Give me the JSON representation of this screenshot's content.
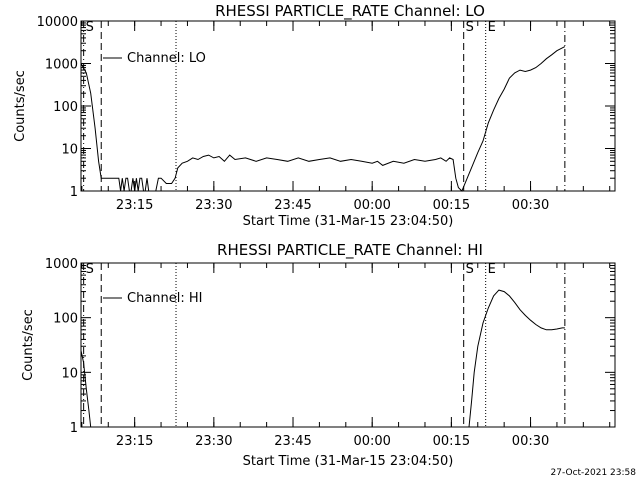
{
  "footer_date": "27-Oct-2021 23:58",
  "colors": {
    "background": "#ffffff",
    "foreground": "#000000"
  },
  "chart_data": [
    {
      "type": "line",
      "title": "RHESSI PARTICLE_RATE Channel: LO",
      "xlabel": "Start Time (31-Mar-15 23:04:50)",
      "ylabel": "Counts/sec",
      "yscale": "log",
      "ylim": [
        1,
        10000
      ],
      "xlim": [
        "23:04:50",
        "00:46:00"
      ],
      "x_ticks": [
        "23:15",
        "23:30",
        "23:45",
        "00:00",
        "00:15",
        "00:30"
      ],
      "y_ticks": [
        "1",
        "10",
        "100",
        "1000",
        "10000"
      ],
      "legend": {
        "label": "Channel: LO",
        "placement": "top-left"
      },
      "markers": [
        {
          "label": "S",
          "time": "23:05:20",
          "style": "dash-dot"
        },
        {
          "label": "",
          "time": "23:08:40",
          "style": "dashed"
        },
        {
          "label": "",
          "time": "23:22:50",
          "style": "dotted"
        },
        {
          "label": "S",
          "time": "00:17:20",
          "style": "dashed"
        },
        {
          "label": "E",
          "time": "00:21:30",
          "style": "dotted"
        },
        {
          "label": "",
          "time": "00:36:30",
          "style": "dash-dot"
        }
      ],
      "series": [
        {
          "x": [
            "23:04:50",
            "23:05:50",
            "23:06:40",
            "23:07:30",
            "23:08:10",
            "23:08:40",
            "23:09:20",
            "23:12:00",
            "23:12:20",
            "23:12:40",
            "23:13:00",
            "23:13:20",
            "23:13:40",
            "23:14:00",
            "23:14:20",
            "23:14:40",
            "23:15:00",
            "23:15:20",
            "23:15:40",
            "23:16:00",
            "23:16:20",
            "23:16:40",
            "23:17:00",
            "23:17:20",
            "23:17:40",
            "23:18:00",
            "23:18:20",
            "23:19:00",
            "23:19:30",
            "23:20:00",
            "23:21:00",
            "23:22:00",
            "23:22:40",
            "23:23:10",
            "23:24:00",
            "23:25:00",
            "23:26:00",
            "23:27:00",
            "23:28:00",
            "23:29:00",
            "23:30:00",
            "23:31:00",
            "23:32:00",
            "23:33:00",
            "23:34:00",
            "23:36:00",
            "23:38:00",
            "23:40:00",
            "23:42:00",
            "23:44:00",
            "23:46:00",
            "23:48:00",
            "23:50:00",
            "23:52:00",
            "23:54:00",
            "23:56:00",
            "23:58:00",
            "00:00:00",
            "00:01:00",
            "00:02:00",
            "00:04:00",
            "00:06:00",
            "00:08:00",
            "00:10:00",
            "00:12:00",
            "00:13:00",
            "00:14:00",
            "00:14:40",
            "00:15:20",
            "00:15:50",
            "00:16:20",
            "00:17:00",
            "00:18:00",
            "00:19:00",
            "00:20:00",
            "00:21:00",
            "00:22:00",
            "00:23:00",
            "00:24:00",
            "00:25:00",
            "00:26:00",
            "00:27:00",
            "00:28:00",
            "00:29:00",
            "00:30:00",
            "00:31:00",
            "00:32:00",
            "00:33:00",
            "00:34:00",
            "00:35:00",
            "00:36:30"
          ],
          "y": [
            1000,
            600,
            200,
            30,
            5,
            2,
            2,
            2,
            1,
            2,
            1,
            2,
            2,
            1,
            1,
            2,
            1,
            2,
            1,
            2,
            2,
            1,
            1,
            2,
            1,
            1,
            1,
            1,
            2,
            2,
            1.5,
            1.5,
            2,
            3.5,
            4.5,
            5,
            6,
            5.5,
            6.5,
            7,
            6,
            6.5,
            5,
            7,
            5.5,
            6,
            5,
            6,
            5.5,
            5,
            6,
            5,
            5.5,
            6,
            5,
            5.5,
            5,
            4.5,
            5,
            4,
            5,
            4.5,
            5.5,
            5,
            5.5,
            6,
            5,
            6,
            5.5,
            2,
            1.2,
            1,
            2,
            4,
            8,
            15,
            40,
            80,
            150,
            250,
            450,
            600,
            700,
            650,
            700,
            800,
            1000,
            1300,
            1600,
            2000,
            2500
          ]
        }
      ]
    },
    {
      "type": "line",
      "title": "RHESSI PARTICLE_RATE Channel: HI",
      "xlabel": "Start Time (31-Mar-15 23:04:50)",
      "ylabel": "Counts/sec",
      "yscale": "log",
      "ylim": [
        1,
        1000
      ],
      "xlim": [
        "23:04:50",
        "00:46:00"
      ],
      "x_ticks": [
        "23:15",
        "23:30",
        "23:45",
        "00:00",
        "00:15",
        "00:30"
      ],
      "y_ticks": [
        "1",
        "10",
        "100",
        "1000"
      ],
      "legend": {
        "label": "Channel: HI",
        "placement": "top-left"
      },
      "markers": [
        {
          "label": "S",
          "time": "23:05:20",
          "style": "dash-dot"
        },
        {
          "label": "",
          "time": "23:08:40",
          "style": "dashed"
        },
        {
          "label": "",
          "time": "23:22:50",
          "style": "dotted"
        },
        {
          "label": "S",
          "time": "00:17:20",
          "style": "dashed"
        },
        {
          "label": "E",
          "time": "00:21:30",
          "style": "dotted"
        },
        {
          "label": "",
          "time": "00:36:30",
          "style": "dash-dot"
        }
      ],
      "series": [
        {
          "x": [
            "23:04:50",
            "23:05:20",
            "23:05:50",
            "23:06:20",
            "23:06:40",
            "00:18:20",
            "00:18:50",
            "00:19:20",
            "00:20:00",
            "00:21:00",
            "00:22:00",
            "00:23:00",
            "00:24:00",
            "00:25:00",
            "00:26:00",
            "00:27:00",
            "00:28:00",
            "00:29:00",
            "00:30:00",
            "00:31:00",
            "00:32:00",
            "00:33:00",
            "00:34:00",
            "00:35:00",
            "00:36:00",
            "00:36:30"
          ],
          "y": [
            25,
            15,
            5,
            2,
            1,
            1,
            3,
            10,
            30,
            80,
            150,
            250,
            320,
            300,
            250,
            190,
            140,
            110,
            90,
            75,
            65,
            60,
            60,
            62,
            65,
            65
          ]
        }
      ]
    }
  ]
}
